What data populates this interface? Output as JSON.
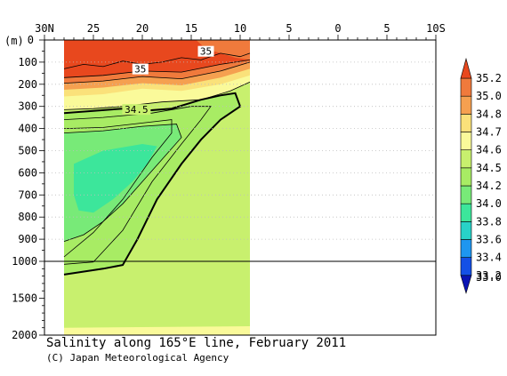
{
  "chart_data": {
    "type": "contour",
    "title": "Salinity along 165°E line, February 2011",
    "credit": "(C) Japan Meteorological Agency",
    "depth_unit_label": "(m)",
    "x_ticks": [
      {
        "label": "30N",
        "lat": 30
      },
      {
        "label": "25",
        "lat": 25
      },
      {
        "label": "20",
        "lat": 20
      },
      {
        "label": "15",
        "lat": 15
      },
      {
        "label": "10",
        "lat": 10
      },
      {
        "label": "5",
        "lat": 5
      },
      {
        "label": "0",
        "lat": 0
      },
      {
        "label": "5",
        "lat": -5
      },
      {
        "label": "10S",
        "lat": -10
      }
    ],
    "x_range": [
      30,
      -10
    ],
    "data_lat_range": [
      28,
      9
    ],
    "y_ticks_upper": [
      0,
      100,
      200,
      300,
      400,
      500,
      600,
      700,
      800,
      900,
      1000
    ],
    "y_ticks_lower": [
      1500,
      2000
    ],
    "y_break_depth": 1000,
    "y_range": [
      0,
      2000
    ],
    "grid": "dotted horizontal lines in 0-1000 m section",
    "colorbar": {
      "levels": [
        33.0,
        33.2,
        33.4,
        33.6,
        33.8,
        34.0,
        34.2,
        34.5,
        34.6,
        34.7,
        34.8,
        35.0,
        35.2
      ],
      "labels": [
        "33.0",
        "33.2",
        "33.4",
        "33.6",
        "33.8",
        "34.0",
        "34.2",
        "34.5",
        "34.6",
        "34.7",
        "34.8",
        "35.0",
        "35.2"
      ],
      "colors": [
        "#0a14b4",
        "#1450e6",
        "#1e96f0",
        "#28d2c8",
        "#3ce69b",
        "#78ea78",
        "#a8ec64",
        "#c8f06e",
        "#fafa9a",
        "#fae17a",
        "#f5a050",
        "#f07a3c",
        "#e8481e"
      ],
      "placement": "right"
    },
    "contour_labels": [
      "35",
      "35",
      "34.5"
    ],
    "fills": [
      {
        "level": 34.5,
        "color": "#c8f06e",
        "points": [
          [
            28,
            0
          ],
          [
            9,
            0
          ],
          [
            9,
            2000
          ],
          [
            28,
            2000
          ]
        ]
      },
      {
        "level": 34.6,
        "color": "#fafa9a",
        "points": [
          [
            28,
            1900
          ],
          [
            9,
            1880
          ],
          [
            9,
            2000
          ],
          [
            28,
            2000
          ]
        ]
      },
      {
        "level": 34.6,
        "color": "#fafa9a",
        "points": [
          [
            28,
            0
          ],
          [
            9,
            0
          ],
          [
            9,
            190
          ],
          [
            11,
            230
          ],
          [
            14,
            270
          ],
          [
            18,
            280
          ],
          [
            22,
            300
          ],
          [
            25,
            310
          ],
          [
            28,
            315
          ]
        ]
      },
      {
        "level": 34.7,
        "color": "#fae17a",
        "points": [
          [
            28,
            0
          ],
          [
            9,
            0
          ],
          [
            9,
            160
          ],
          [
            12,
            200
          ],
          [
            16,
            230
          ],
          [
            20,
            220
          ],
          [
            24,
            245
          ],
          [
            28,
            255
          ]
        ]
      },
      {
        "level": 34.8,
        "color": "#f5a050",
        "points": [
          [
            28,
            0
          ],
          [
            9,
            0
          ],
          [
            9,
            130
          ],
          [
            12,
            170
          ],
          [
            16,
            205
          ],
          [
            20,
            195
          ],
          [
            24,
            215
          ],
          [
            28,
            225
          ]
        ]
      },
      {
        "level": 35.0,
        "color": "#f07a3c",
        "points": [
          [
            28,
            0
          ],
          [
            9,
            0
          ],
          [
            9,
            100
          ],
          [
            12,
            140
          ],
          [
            16,
            175
          ],
          [
            20,
            165
          ],
          [
            24,
            185
          ],
          [
            28,
            195
          ]
        ]
      },
      {
        "level": 35.2,
        "color": "#e8481e",
        "points": [
          [
            28,
            0
          ],
          [
            14.5,
            0
          ],
          [
            13.5,
            40
          ],
          [
            10.5,
            80
          ],
          [
            9,
            90
          ],
          [
            12,
            110
          ],
          [
            16,
            145
          ],
          [
            20,
            140
          ],
          [
            24,
            160
          ],
          [
            28,
            170
          ]
        ]
      },
      {
        "level": 34.2,
        "color": "#a8ec64",
        "points": [
          [
            28,
            330
          ],
          [
            25,
            320
          ],
          [
            22,
            310
          ],
          [
            20,
            320
          ],
          [
            17,
            310
          ],
          [
            14,
            270
          ],
          [
            12,
            250
          ],
          [
            10.5,
            240
          ],
          [
            10,
            300
          ],
          [
            12,
            360
          ],
          [
            14,
            450
          ],
          [
            16,
            560
          ],
          [
            18.5,
            720
          ],
          [
            20.5,
            900
          ],
          [
            22,
            1050
          ],
          [
            24,
            1100
          ],
          [
            28,
            1180
          ]
        ]
      },
      {
        "level": 34.0,
        "color": "#78ea78",
        "points": [
          [
            28,
            420
          ],
          [
            24,
            410
          ],
          [
            20,
            390
          ],
          [
            16.5,
            380
          ],
          [
            16,
            440
          ],
          [
            18,
            540
          ],
          [
            20,
            640
          ],
          [
            22,
            740
          ],
          [
            24,
            820
          ],
          [
            26,
            880
          ],
          [
            28,
            910
          ]
        ]
      },
      {
        "level": 33.8,
        "color": "#3ce69b",
        "points": [
          [
            27,
            560
          ],
          [
            24,
            500
          ],
          [
            20,
            470
          ],
          [
            18.5,
            480
          ],
          [
            19.5,
            560
          ],
          [
            21,
            640
          ],
          [
            23,
            720
          ],
          [
            25,
            780
          ],
          [
            26.5,
            770
          ],
          [
            27,
            700
          ]
        ]
      }
    ],
    "contour_lines": [
      {
        "level": 35.2,
        "points": [
          [
            28,
            130
          ],
          [
            26,
            110
          ],
          [
            24,
            120
          ],
          [
            22,
            95
          ],
          [
            20,
            110
          ],
          [
            18,
            100
          ],
          [
            16,
            80
          ],
          [
            14,
            90
          ],
          [
            12,
            60
          ],
          [
            10,
            75
          ],
          [
            9,
            60
          ]
        ]
      },
      {
        "level": 35.0,
        "points": [
          [
            28,
            170
          ],
          [
            24,
            160
          ],
          [
            20,
            140
          ],
          [
            16,
            145
          ],
          [
            12,
            110
          ],
          [
            9,
            90
          ]
        ]
      },
      {
        "level": 34.8,
        "points": [
          [
            28,
            195
          ],
          [
            24,
            185
          ],
          [
            20,
            165
          ],
          [
            16,
            175
          ],
          [
            12,
            140
          ],
          [
            9,
            100
          ]
        ]
      },
      {
        "level": 34.6,
        "points": [
          [
            28,
            315
          ],
          [
            25,
            310
          ],
          [
            22,
            300
          ],
          [
            18,
            280
          ],
          [
            14,
            270
          ],
          [
            11,
            230
          ],
          [
            9,
            190
          ]
        ]
      },
      {
        "level": 34.5,
        "points": [
          [
            28,
            330
          ],
          [
            25,
            320
          ],
          [
            22,
            310
          ],
          [
            20,
            320
          ],
          [
            17,
            310
          ],
          [
            14,
            270
          ],
          [
            12,
            250
          ],
          [
            10.5,
            240
          ],
          [
            10,
            300
          ],
          [
            12,
            360
          ],
          [
            14,
            450
          ],
          [
            16,
            560
          ],
          [
            18.5,
            720
          ],
          [
            20.5,
            900
          ],
          [
            22,
            1050
          ],
          [
            24,
            1100
          ],
          [
            28,
            1180
          ]
        ]
      },
      {
        "level": 34.4,
        "points": [
          [
            28,
            360
          ],
          [
            24,
            350
          ],
          [
            19,
            330
          ],
          [
            15,
            300
          ],
          [
            13,
            300
          ],
          [
            14,
            360
          ],
          [
            16,
            470
          ],
          [
            19,
            640
          ],
          [
            22,
            860
          ],
          [
            25,
            1010
          ],
          [
            28,
            1040
          ]
        ]
      },
      {
        "level": 34.2,
        "points": [
          [
            28,
            400
          ],
          [
            24,
            395
          ],
          [
            19,
            370
          ],
          [
            17,
            360
          ],
          [
            17,
            420
          ],
          [
            19,
            530
          ],
          [
            22,
            720
          ],
          [
            25,
            870
          ],
          [
            28,
            980
          ]
        ]
      },
      {
        "level": 34.0,
        "points": [
          [
            28,
            420
          ],
          [
            24,
            410
          ],
          [
            20,
            390
          ],
          [
            16.5,
            380
          ],
          [
            16,
            440
          ],
          [
            18,
            540
          ],
          [
            20,
            640
          ],
          [
            22,
            740
          ],
          [
            24,
            820
          ],
          [
            26,
            880
          ],
          [
            28,
            910
          ]
        ]
      }
    ]
  }
}
